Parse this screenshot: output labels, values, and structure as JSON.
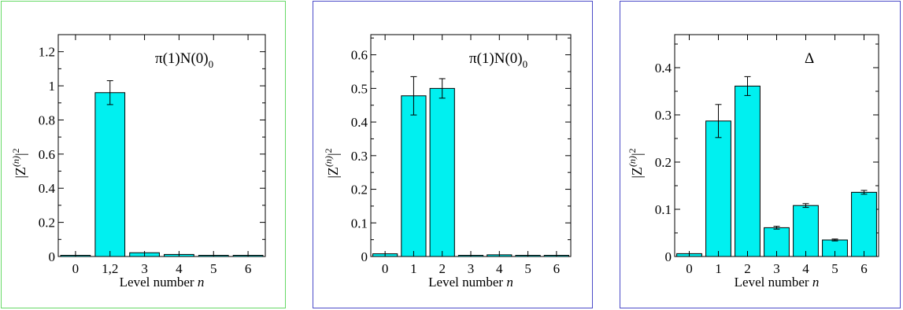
{
  "chart_data": [
    {
      "type": "bar",
      "categories": [
        "0",
        "1,2",
        "3",
        "4",
        "5",
        "6"
      ],
      "values": [
        0.005,
        0.96,
        0.022,
        0.012,
        0.002,
        0.002
      ],
      "errors": [
        0.002,
        0.07,
        0.003,
        0.002,
        0.001,
        0.001
      ],
      "annotation": "π(1)N(0)",
      "annotation_subscript": "0",
      "xlabel": "Level number",
      "xlabel_var": "n",
      "ylabel": "|Z",
      "ylabel_sup": "(n)",
      "ylabel_tail": "|",
      "ylabel_exp": "2",
      "yticks": [
        "0",
        "0.2",
        "0.4",
        "0.6",
        "0.8",
        "1",
        "1.2"
      ],
      "ylim": [
        0,
        1.3
      ],
      "bar_color": "#00f0f0",
      "border_color": "#66d966"
    },
    {
      "type": "bar",
      "categories": [
        "0",
        "1",
        "2",
        "3",
        "4",
        "5",
        "6"
      ],
      "values": [
        0.008,
        0.478,
        0.5,
        0.002,
        0.005,
        0.001,
        0.003
      ],
      "errors": [
        0.002,
        0.057,
        0.029,
        0.001,
        0.001,
        0.001,
        0.001
      ],
      "annotation": "π(1)N(0)",
      "annotation_subscript": "0",
      "xlabel": "Level number",
      "xlabel_var": "n",
      "ylabel": "|Z",
      "ylabel_sup": "(n)",
      "ylabel_tail": "|",
      "ylabel_exp": "2",
      "yticks": [
        "0",
        "0.1",
        "0.2",
        "0.3",
        "0.4",
        "0.5",
        "0.6"
      ],
      "ylim": [
        0,
        0.66
      ],
      "bar_color": "#00f0f0",
      "border_color": "#4b4bc8"
    },
    {
      "type": "bar",
      "categories": [
        "0",
        "1",
        "2",
        "3",
        "4",
        "5",
        "6"
      ],
      "values": [
        0.006,
        0.287,
        0.361,
        0.061,
        0.108,
        0.035,
        0.136
      ],
      "errors": [
        0.001,
        0.035,
        0.02,
        0.003,
        0.004,
        0.002,
        0.004
      ],
      "annotation": "Δ",
      "annotation_subscript": "",
      "xlabel": "Level number",
      "xlabel_var": "n",
      "ylabel": "|Z",
      "ylabel_sup": "(n)",
      "ylabel_tail": "|",
      "ylabel_exp": "2",
      "yticks": [
        "0",
        "0.1",
        "0.2",
        "0.3",
        "0.4"
      ],
      "ylim": [
        0,
        0.47
      ],
      "bar_color": "#00f0f0",
      "border_color": "#4b4bc8"
    }
  ]
}
